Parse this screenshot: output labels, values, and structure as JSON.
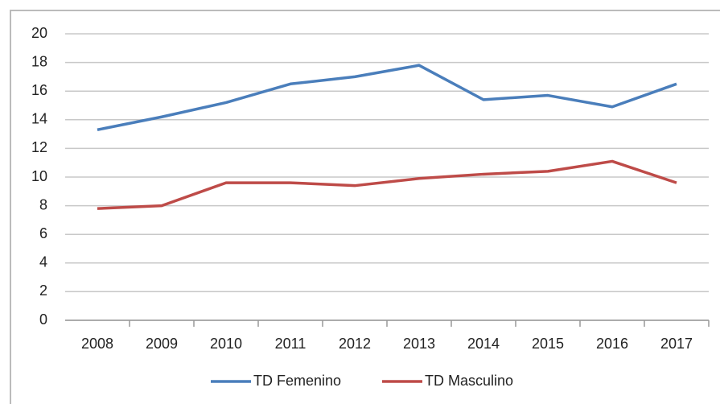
{
  "chart_data": {
    "type": "line",
    "categories": [
      "2008",
      "2009",
      "2010",
      "2011",
      "2012",
      "2013",
      "2014",
      "2015",
      "2016",
      "2017"
    ],
    "series": [
      {
        "name": "TD Femenino",
        "color": "#4a7ebb",
        "values": [
          13.3,
          14.2,
          15.2,
          16.5,
          17.0,
          17.8,
          15.4,
          15.7,
          14.9,
          16.5
        ]
      },
      {
        "name": "TD Masculino",
        "color": "#be4b48",
        "values": [
          7.8,
          8.0,
          9.6,
          9.6,
          9.4,
          9.9,
          10.2,
          10.4,
          11.1,
          9.6
        ]
      }
    ],
    "ylim": [
      0,
      20
    ],
    "yticks": [
      0,
      2,
      4,
      6,
      8,
      10,
      12,
      14,
      16,
      18,
      20
    ],
    "grid": true,
    "legend": "bottom"
  }
}
